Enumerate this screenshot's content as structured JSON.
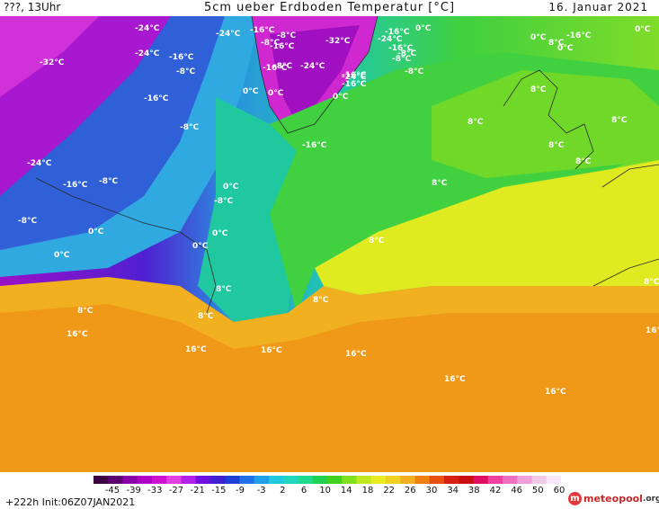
{
  "header": {
    "left": "???, 13Uhr",
    "title": "5cm ueber Erdboden Temperatur [°C]",
    "date": "16. Januar 2021"
  },
  "legend": {
    "ticks": [
      "-45",
      "-39",
      "-33",
      "-27",
      "-21",
      "-15",
      "-9",
      "-3",
      "2",
      "6",
      "10",
      "14",
      "18",
      "22",
      "26",
      "30",
      "34",
      "38",
      "42",
      "46",
      "50",
      "60"
    ],
    "colors": [
      "#3c0040",
      "#5a0070",
      "#8a00a8",
      "#b000c8",
      "#d010d0",
      "#e040e0",
      "#b020e8",
      "#7010e0",
      "#4020d0",
      "#2040d8",
      "#2070e8",
      "#20a0e8",
      "#20c8e0",
      "#20d8c0",
      "#20d890",
      "#20d050",
      "#40d020",
      "#80e020",
      "#c0e820",
      "#e8ec20",
      "#f0d020",
      "#f0b020",
      "#f08010",
      "#e85010",
      "#d82010",
      "#c81010",
      "#e01060",
      "#f040a0",
      "#f070c0",
      "#f0a0d8",
      "#f0c8e8",
      "#f8e8f8"
    ]
  },
  "map_labels": [
    {
      "text": "-24°C"
    },
    {
      "text": "-24°C"
    },
    {
      "text": "-16°C"
    },
    {
      "text": "-8°C"
    },
    {
      "text": "-16°C"
    },
    {
      "text": "-32°C"
    },
    {
      "text": "-24°C"
    },
    {
      "text": "-16°C"
    },
    {
      "text": "-8°C"
    },
    {
      "text": "0°C"
    },
    {
      "text": "-16°C"
    },
    {
      "text": "-8°C"
    },
    {
      "text": "-8°C"
    },
    {
      "text": "-32°C"
    },
    {
      "text": "-24°C"
    },
    {
      "text": "-16°C"
    },
    {
      "text": "-8°C"
    },
    {
      "text": "-16°C"
    },
    {
      "text": "-24°C"
    },
    {
      "text": "-16°C"
    },
    {
      "text": "0°C"
    },
    {
      "text": "0°C"
    },
    {
      "text": "-8°C"
    },
    {
      "text": "-24°C"
    },
    {
      "text": "-16°C"
    },
    {
      "text": "0°C"
    },
    {
      "text": "0°C"
    },
    {
      "text": "-16°C"
    },
    {
      "text": "8°C"
    },
    {
      "text": "0°C"
    },
    {
      "text": "-16°C"
    },
    {
      "text": "-8°C"
    },
    {
      "text": "8°C"
    },
    {
      "text": "8°C"
    },
    {
      "text": "-8°C"
    },
    {
      "text": "-16°C"
    },
    {
      "text": "8°C"
    },
    {
      "text": "8°C"
    },
    {
      "text": "8°C"
    },
    {
      "text": "8°C"
    },
    {
      "text": "-24°C"
    },
    {
      "text": "-16°C"
    },
    {
      "text": "-8°C"
    },
    {
      "text": "0°C"
    },
    {
      "text": "8°C"
    },
    {
      "text": "-8°C"
    },
    {
      "text": "0°C"
    },
    {
      "text": "-8°C"
    },
    {
      "text": "0°C"
    },
    {
      "text": "0°C"
    },
    {
      "text": "0°C"
    },
    {
      "text": "8°C"
    },
    {
      "text": "8°C"
    },
    {
      "text": "8°C"
    },
    {
      "text": "8°C"
    },
    {
      "text": "8°C"
    },
    {
      "text": "16°C"
    },
    {
      "text": "16°C"
    },
    {
      "text": "16°C"
    },
    {
      "text": "16°C"
    },
    {
      "text": "16°C"
    },
    {
      "text": "16°C"
    },
    {
      "text": "16°C"
    },
    {
      "text": "0°C"
    }
  ],
  "footer": {
    "run": "+222h  Init:06Z07JAN2021",
    "logo_mark": "m",
    "logo_brand": "meteopool",
    "logo_tld": ".org"
  }
}
